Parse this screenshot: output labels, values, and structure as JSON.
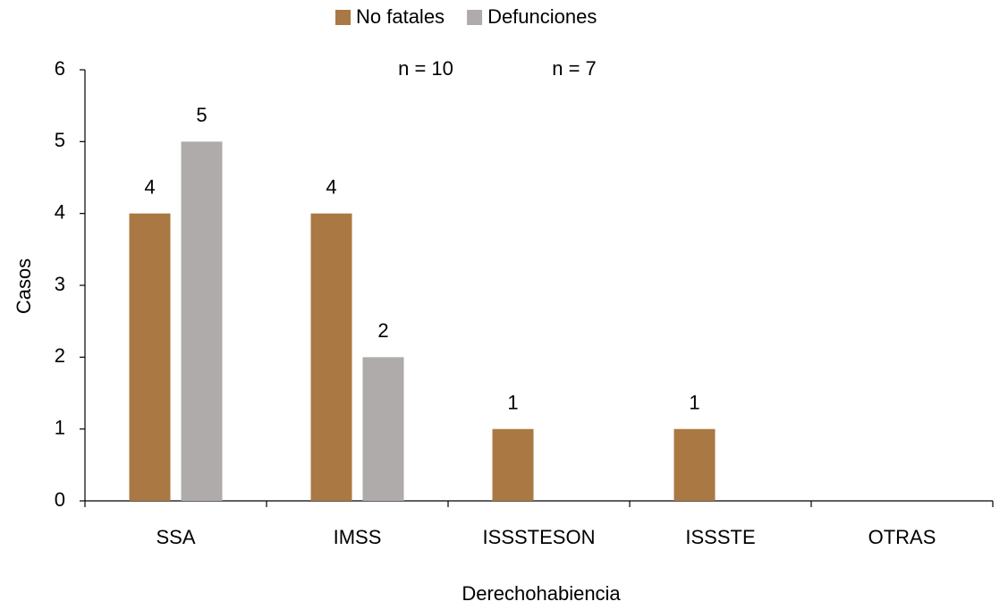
{
  "chart_data": {
    "type": "bar",
    "title": null,
    "x_label": "Derechohabiencia",
    "y_label": "Casos",
    "annotations": [
      "n = 10",
      "n = 7"
    ],
    "categories": [
      "SSA",
      "IMSS",
      "ISSSTESON",
      "ISSSTE",
      "OTRAS"
    ],
    "series": [
      {
        "name": "No fatales",
        "color": "#a97843",
        "values": [
          4,
          4,
          1,
          1,
          null
        ]
      },
      {
        "name": "Defunciones",
        "color": "#afabab",
        "values": [
          5,
          2,
          null,
          null,
          null
        ]
      }
    ],
    "ylim": [
      0,
      6
    ],
    "yticks": [
      0,
      1,
      2,
      3,
      4,
      5,
      6
    ],
    "grid": false,
    "legend": "top"
  }
}
